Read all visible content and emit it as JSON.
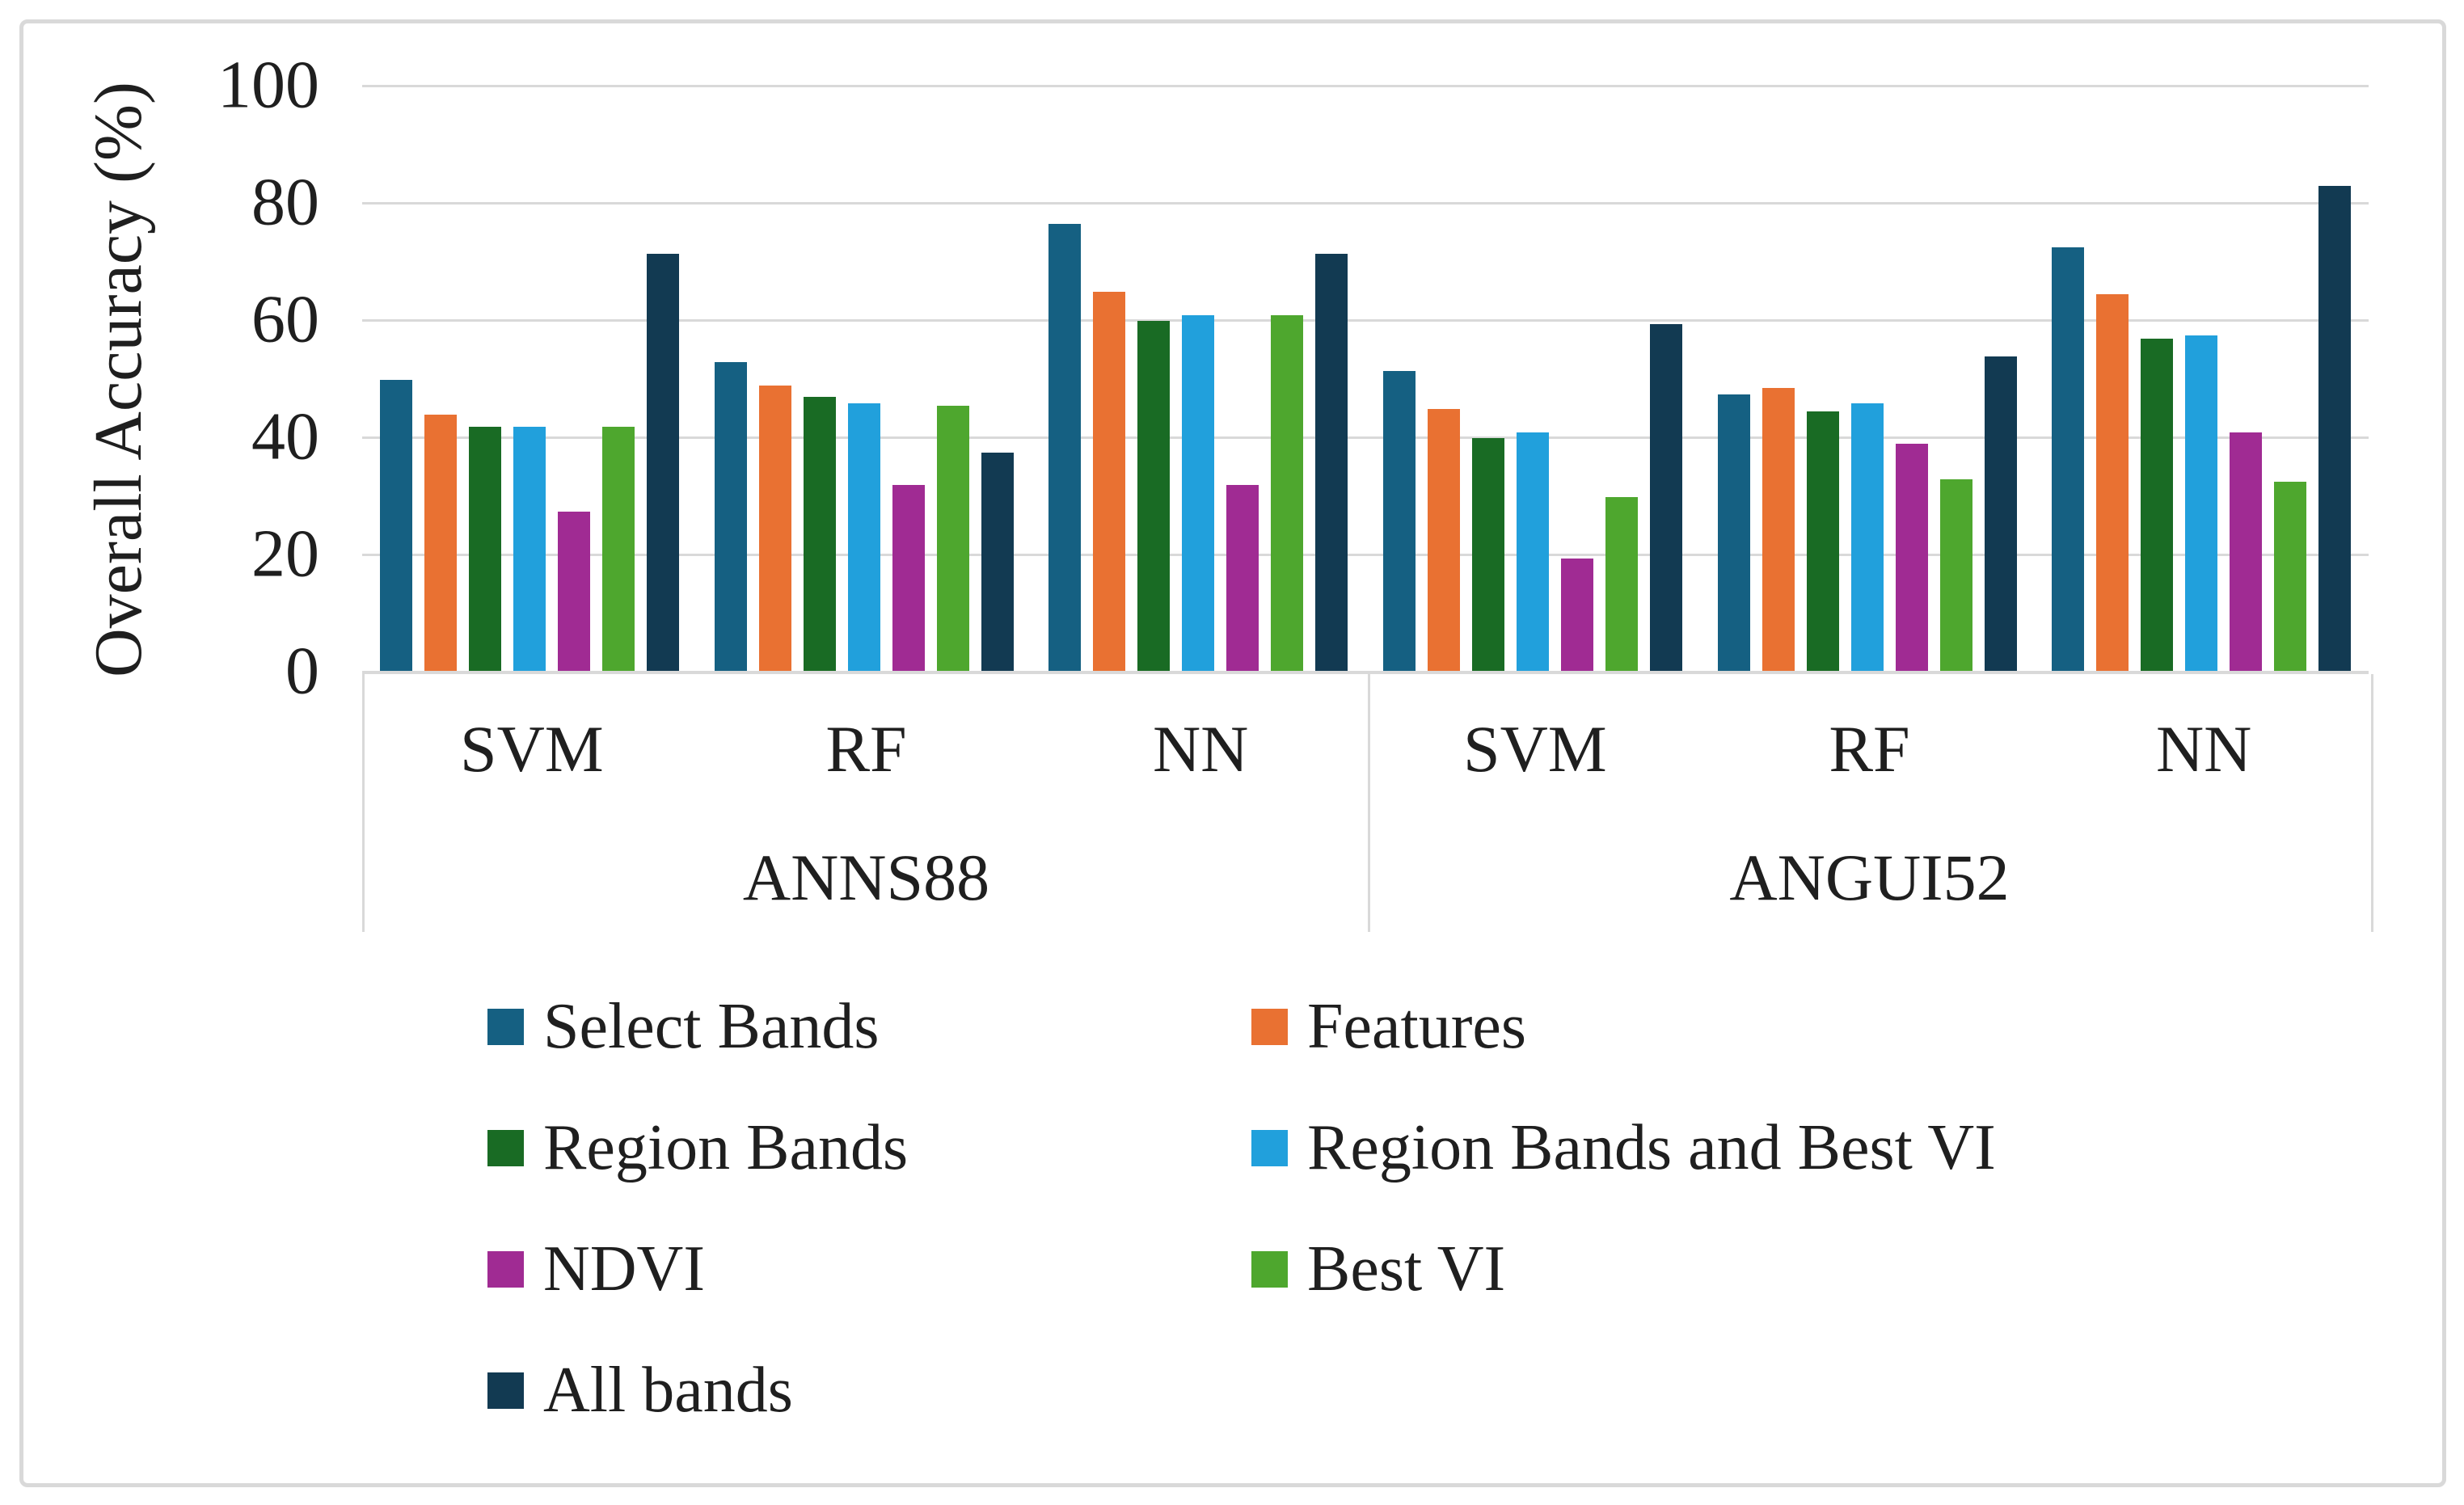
{
  "chart_data": {
    "type": "bar",
    "title": "",
    "xlabel": "",
    "ylabel": "Overall Accuracy (%)",
    "ylim": [
      0,
      100
    ],
    "yticks": [
      0,
      20,
      40,
      60,
      80,
      100
    ],
    "grid": "horizontal",
    "legend_position": "bottom",
    "groups": [
      {
        "label": "ANNS88",
        "categories": [
          "SVM",
          "RF",
          "NN"
        ]
      },
      {
        "label": "ANGUI52",
        "categories": [
          "SVM",
          "RF",
          "NN"
        ]
      }
    ],
    "series": [
      {
        "name": "Select Bands",
        "color": "#156082",
        "values": [
          50,
          53,
          76.5,
          51.5,
          47.5,
          72.5
        ]
      },
      {
        "name": "Features",
        "color": "#E97132",
        "values": [
          44,
          49,
          65,
          45,
          48.5,
          64.5
        ]
      },
      {
        "name": "Region Bands",
        "color": "#196B24",
        "values": [
          42,
          47,
          60,
          40,
          44.5,
          57
        ]
      },
      {
        "name": "Region Bands and Best VI",
        "color": "#21A0DC",
        "values": [
          42,
          46,
          61,
          41,
          46,
          57.5
        ]
      },
      {
        "name": "NDVI",
        "color": "#A02B93",
        "values": [
          27.5,
          32,
          32,
          19.5,
          39,
          41
        ]
      },
      {
        "name": "Best VI",
        "color": "#4EA72E",
        "values": [
          42,
          45.5,
          61,
          30,
          33,
          32.5
        ]
      },
      {
        "name": "All bands",
        "color": "#123A52",
        "values": [
          71.5,
          37.5,
          71.5,
          59.5,
          54,
          83
        ]
      }
    ],
    "value_columns_note": "values are ordered: ANNS88-SVM, ANNS88-RF, ANNS88-NN, ANGUI52-SVM, ANGUI52-RF, ANGUI52-NN"
  },
  "colors": {
    "gridline": "#D9D9D9",
    "axis_line": "#D9D9D9",
    "frame_border": "#D9D9D9",
    "text": "#1F1F1F",
    "background": "#FFFFFF"
  }
}
